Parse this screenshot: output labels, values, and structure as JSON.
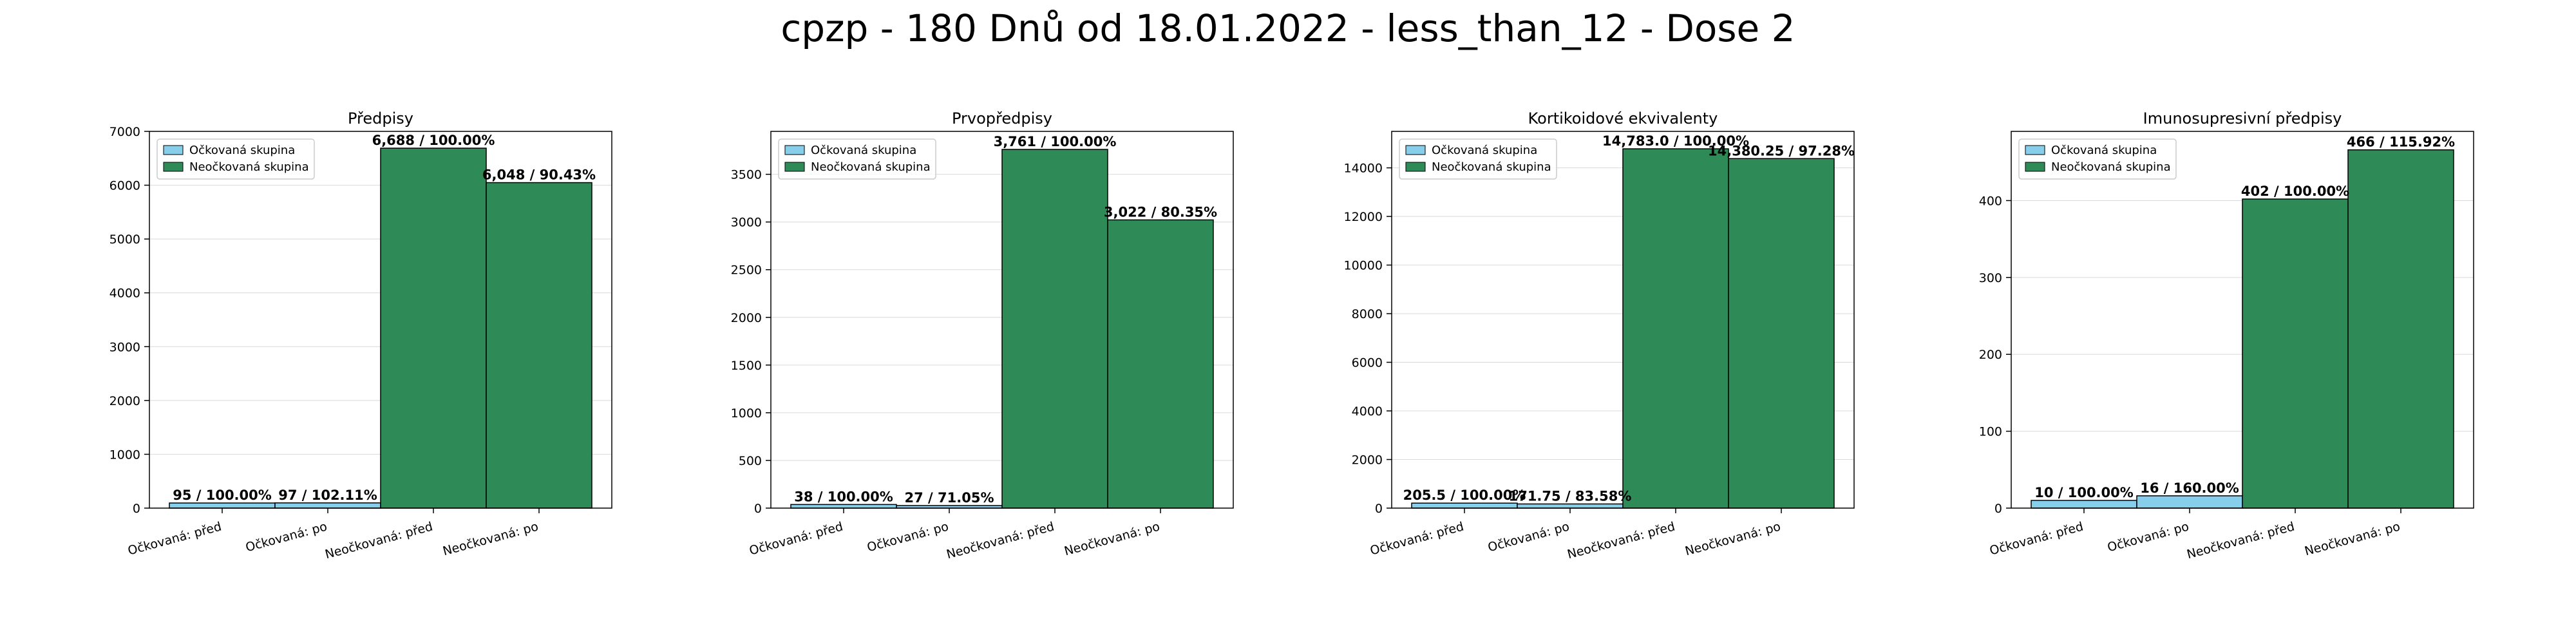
{
  "title": "cpzp - 180 Dnů od 18.01.2022 - less_than_12 - Dose 2",
  "colors": {
    "vaccinated": "#87ceeb",
    "unvaccinated": "#2e8b57",
    "edge": "#000000"
  },
  "legend": {
    "vaccinated": "Očkovaná skupina",
    "unvaccinated": "Neočkovaná skupina",
    "placement": "top-left"
  },
  "chart_data": [
    {
      "type": "bar",
      "title": "Předpisy",
      "categories": [
        "Očkovaná: před",
        "Očkovaná: po",
        "Neočkovaná: před",
        "Neočkovaná: po"
      ],
      "values": [
        95,
        97,
        6688,
        6048
      ],
      "groups": [
        "vaccinated",
        "vaccinated",
        "unvaccinated",
        "unvaccinated"
      ],
      "labels": [
        "95 / 100.00%",
        "97 / 102.11%",
        "6,688 / 100.00%",
        "6,048 / 90.43%"
      ],
      "ylim": [
        0,
        7000
      ],
      "yticks": [
        0,
        1000,
        2000,
        3000,
        4000,
        5000,
        6000,
        7000
      ],
      "grid": true
    },
    {
      "type": "bar",
      "title": "Prvopředpisy",
      "categories": [
        "Očkovaná: před",
        "Očkovaná: po",
        "Neočkovaná: před",
        "Neočkovaná: po"
      ],
      "values": [
        38,
        27,
        3761,
        3022
      ],
      "groups": [
        "vaccinated",
        "vaccinated",
        "unvaccinated",
        "unvaccinated"
      ],
      "labels": [
        "38 / 100.00%",
        "27 / 71.05%",
        "3,761 / 100.00%",
        "3,022 / 80.35%"
      ],
      "ylim": [
        0,
        3950
      ],
      "yticks": [
        0,
        500,
        1000,
        1500,
        2000,
        2500,
        3000,
        3500
      ],
      "grid": true
    },
    {
      "type": "bar",
      "title": "Kortikoidové ekvivalenty",
      "categories": [
        "Očkovaná: před",
        "Očkovaná: po",
        "Neočkovaná: před",
        "Neočkovaná: po"
      ],
      "values": [
        205.5,
        171.75,
        14783.0,
        14380.25
      ],
      "groups": [
        "vaccinated",
        "vaccinated",
        "unvaccinated",
        "unvaccinated"
      ],
      "labels": [
        "205.5 / 100.00%",
        "171.75 / 83.58%",
        "14,783.0 / 100.00%",
        "14,380.25 / 97.28%"
      ],
      "ylim": [
        0,
        15500
      ],
      "yticks": [
        0,
        2000,
        4000,
        6000,
        8000,
        10000,
        12000,
        14000
      ],
      "grid": true
    },
    {
      "type": "bar",
      "title": "Imunosupresivní předpisy",
      "categories": [
        "Očkovaná: před",
        "Očkovaná: po",
        "Neočkovaná: před",
        "Neočkovaná: po"
      ],
      "values": [
        10,
        16,
        402,
        466
      ],
      "groups": [
        "vaccinated",
        "vaccinated",
        "unvaccinated",
        "unvaccinated"
      ],
      "labels": [
        "10 / 100.00%",
        "16 / 160.00%",
        "402 / 100.00%",
        "466 / 115.92%"
      ],
      "ylim": [
        0,
        490
      ],
      "yticks": [
        0,
        100,
        200,
        300,
        400
      ],
      "grid": true
    }
  ]
}
